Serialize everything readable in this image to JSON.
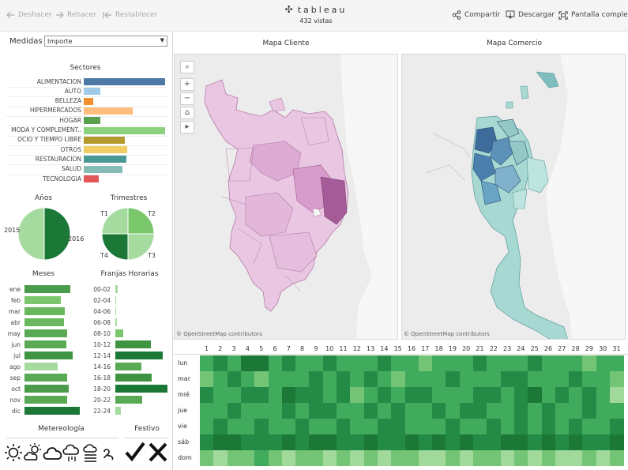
{
  "toolbar": {
    "undo": "Deshacer",
    "redo": "Rehacer",
    "reset": "Restablecer",
    "share": "Compartir",
    "download": "Descargar",
    "fullscreen": "Pantalla completa",
    "logo": "tableau",
    "views": "432 vistas"
  },
  "filters": {
    "medidas_label": "Medidas",
    "medidas_value": "Importe"
  },
  "sectores": {
    "title": "Sectores",
    "items": [
      {
        "label": "ALIMENTACION",
        "value": 100,
        "color": "#4e79a7"
      },
      {
        "label": "AUTO",
        "value": 20,
        "color": "#a0cbe8"
      },
      {
        "label": "BELLEZA",
        "value": 12,
        "color": "#f28e2b"
      },
      {
        "label": "HIPERMERCADOS",
        "value": 60,
        "color": "#ffbe7d"
      },
      {
        "label": "HOGAR",
        "value": 20,
        "color": "#59a14f"
      },
      {
        "label": "MODA Y COMPLEMENT..",
        "value": 100,
        "color": "#8cd17d"
      },
      {
        "label": "OCIO Y TIEMPO LIBRE",
        "value": 50,
        "color": "#b6992d"
      },
      {
        "label": "OTROS",
        "value": 53,
        "color": "#f1ce63"
      },
      {
        "label": "RESTAURACION",
        "value": 52,
        "color": "#499894"
      },
      {
        "label": "SALUD",
        "value": 48,
        "color": "#86bcb6"
      },
      {
        "label": "TECNOLOGIA",
        "value": 18,
        "color": "#e15759"
      }
    ]
  },
  "anios": {
    "title": "Años",
    "items": [
      {
        "label": "2015",
        "value": 50,
        "color": "#a6dba0"
      },
      {
        "label": "2016",
        "value": 50,
        "color": "#1b7837"
      }
    ]
  },
  "trimestres": {
    "title": "Trimestres",
    "items": [
      {
        "label": "T1",
        "value": 25,
        "color": "#a6dba0"
      },
      {
        "label": "T2",
        "value": 25,
        "color": "#7bc86c"
      },
      {
        "label": "T3",
        "value": 25,
        "color": "#a6dba0"
      },
      {
        "label": "T4",
        "value": 25,
        "color": "#1b7837"
      }
    ]
  },
  "meses": {
    "title": "Meses",
    "items": [
      {
        "label": "ene",
        "value": 72,
        "color": "#4a9c4a"
      },
      {
        "label": "feb",
        "value": 58,
        "color": "#7bc86c"
      },
      {
        "label": "mar",
        "value": 64,
        "color": "#6ab85e"
      },
      {
        "label": "abr",
        "value": 63,
        "color": "#6ab85e"
      },
      {
        "label": "may",
        "value": 68,
        "color": "#5aaa55"
      },
      {
        "label": "jun",
        "value": 66,
        "color": "#5aaa55"
      },
      {
        "label": "jul",
        "value": 76,
        "color": "#3f9441"
      },
      {
        "label": "ago",
        "value": 52,
        "color": "#a6dba0"
      },
      {
        "label": "sep",
        "value": 68,
        "color": "#5aaa55"
      },
      {
        "label": "oct",
        "value": 70,
        "color": "#4a9c4a"
      },
      {
        "label": "nov",
        "value": 68,
        "color": "#5aaa55"
      },
      {
        "label": "dic",
        "value": 88,
        "color": "#1b7837"
      }
    ]
  },
  "franjas": {
    "title": "Franjas Horarias",
    "items": [
      {
        "label": "00-02",
        "value": 3,
        "color": "#a6dba0"
      },
      {
        "label": "02-04",
        "value": 0,
        "color": "#a6dba0"
      },
      {
        "label": "04-06",
        "value": 0,
        "color": "#a6dba0"
      },
      {
        "label": "06-08",
        "value": 2,
        "color": "#a6dba0"
      },
      {
        "label": "08-10",
        "value": 10,
        "color": "#7bc86c"
      },
      {
        "label": "10-12",
        "value": 45,
        "color": "#3f9441"
      },
      {
        "label": "12-14",
        "value": 60,
        "color": "#1b7837"
      },
      {
        "label": "14-16",
        "value": 33,
        "color": "#5aaa55"
      },
      {
        "label": "16-18",
        "value": 46,
        "color": "#3f9441"
      },
      {
        "label": "18-20",
        "value": 66,
        "color": "#1b7837"
      },
      {
        "label": "20-22",
        "value": 34,
        "color": "#5aaa55"
      },
      {
        "label": "22-24",
        "value": 7,
        "color": "#a6dba0"
      }
    ]
  },
  "meteorologia": {
    "title": "Metereología",
    "icons": [
      "sun-icon",
      "partly-cloudy-icon",
      "cloud-icon",
      "rain-icon",
      "fog-icon",
      "wind-icon"
    ]
  },
  "festivo": {
    "title": "Festivo",
    "icons": [
      "check-icon",
      "cross-icon"
    ]
  },
  "maps": {
    "cliente_title": "Mapa Cliente",
    "comercio_title": "Mapa Comercio",
    "attribution": "© OpenStreetMap contributors"
  },
  "chart_data": [
    {
      "type": "bar",
      "title": "Sectores",
      "categories": [
        "ALIMENTACION",
        "AUTO",
        "BELLEZA",
        "HIPERMERCADOS",
        "HOGAR",
        "MODA Y COMPLEMENT..",
        "OCIO Y TIEMPO LIBRE",
        "OTROS",
        "RESTAURACION",
        "SALUD",
        "TECNOLOGIA"
      ],
      "values": [
        100,
        20,
        12,
        60,
        20,
        100,
        50,
        53,
        52,
        48,
        18
      ]
    },
    {
      "type": "pie",
      "title": "Años",
      "categories": [
        "2015",
        "2016"
      ],
      "values": [
        50,
        50
      ]
    },
    {
      "type": "pie",
      "title": "Trimestres",
      "categories": [
        "T1",
        "T2",
        "T3",
        "T4"
      ],
      "values": [
        25,
        25,
        25,
        25
      ]
    },
    {
      "type": "bar",
      "title": "Meses",
      "categories": [
        "ene",
        "feb",
        "mar",
        "abr",
        "may",
        "jun",
        "jul",
        "ago",
        "sep",
        "oct",
        "nov",
        "dic"
      ],
      "values": [
        72,
        58,
        64,
        63,
        68,
        66,
        76,
        52,
        68,
        70,
        68,
        88
      ]
    },
    {
      "type": "bar",
      "title": "Franjas Horarias",
      "categories": [
        "00-02",
        "02-04",
        "04-06",
        "06-08",
        "08-10",
        "10-12",
        "12-14",
        "14-16",
        "16-18",
        "18-20",
        "20-22",
        "22-24"
      ],
      "values": [
        3,
        0,
        0,
        2,
        10,
        45,
        60,
        33,
        46,
        66,
        34,
        7
      ]
    },
    {
      "type": "heatmap",
      "x": [
        1,
        2,
        3,
        4,
        5,
        6,
        7,
        8,
        9,
        10,
        11,
        12,
        13,
        14,
        15,
        16,
        17,
        18,
        19,
        20,
        21,
        22,
        23,
        24,
        25,
        26,
        27,
        28,
        29,
        30,
        31
      ],
      "y": [
        "lun",
        "mar",
        "mié",
        "jue",
        "vie",
        "sáb",
        "dom"
      ],
      "values": [
        [
          3,
          4,
          3,
          5,
          5,
          3,
          4,
          3,
          3,
          4,
          3,
          3,
          3,
          4,
          3,
          3,
          2,
          3,
          3,
          3,
          4,
          3,
          3,
          3,
          4,
          3,
          3,
          3,
          2,
          3,
          3
        ],
        [
          2,
          3,
          4,
          3,
          2,
          3,
          3,
          3,
          4,
          3,
          4,
          3,
          4,
          3,
          2,
          3,
          3,
          3,
          4,
          3,
          3,
          3,
          4,
          4,
          3,
          3,
          3,
          4,
          3,
          3,
          2
        ],
        [
          4,
          3,
          3,
          4,
          4,
          3,
          5,
          4,
          4,
          3,
          4,
          2,
          3,
          4,
          3,
          4,
          4,
          3,
          3,
          3,
          4,
          4,
          3,
          4,
          5,
          3,
          4,
          3,
          4,
          3,
          1
        ],
        [
          3,
          3,
          4,
          3,
          3,
          3,
          4,
          3,
          4,
          4,
          3,
          3,
          4,
          3,
          4,
          3,
          3,
          4,
          3,
          4,
          4,
          3,
          3,
          4,
          3,
          4,
          3,
          3,
          4,
          3,
          3
        ],
        [
          3,
          4,
          3,
          3,
          4,
          3,
          3,
          4,
          3,
          3,
          4,
          3,
          3,
          4,
          4,
          3,
          3,
          3,
          4,
          3,
          3,
          4,
          3,
          4,
          3,
          4,
          3,
          4,
          3,
          3,
          4
        ],
        [
          4,
          5,
          5,
          4,
          4,
          4,
          5,
          4,
          5,
          5,
          4,
          4,
          5,
          4,
          4,
          5,
          4,
          5,
          4,
          5,
          4,
          4,
          5,
          5,
          4,
          5,
          4,
          5,
          4,
          4,
          5
        ],
        [
          2,
          1,
          2,
          2,
          3,
          2,
          1,
          2,
          2,
          1,
          2,
          1,
          2,
          1,
          2,
          2,
          1,
          1,
          2,
          1,
          2,
          2,
          1,
          2,
          1,
          2,
          1,
          1,
          2,
          1,
          2
        ]
      ]
    }
  ]
}
